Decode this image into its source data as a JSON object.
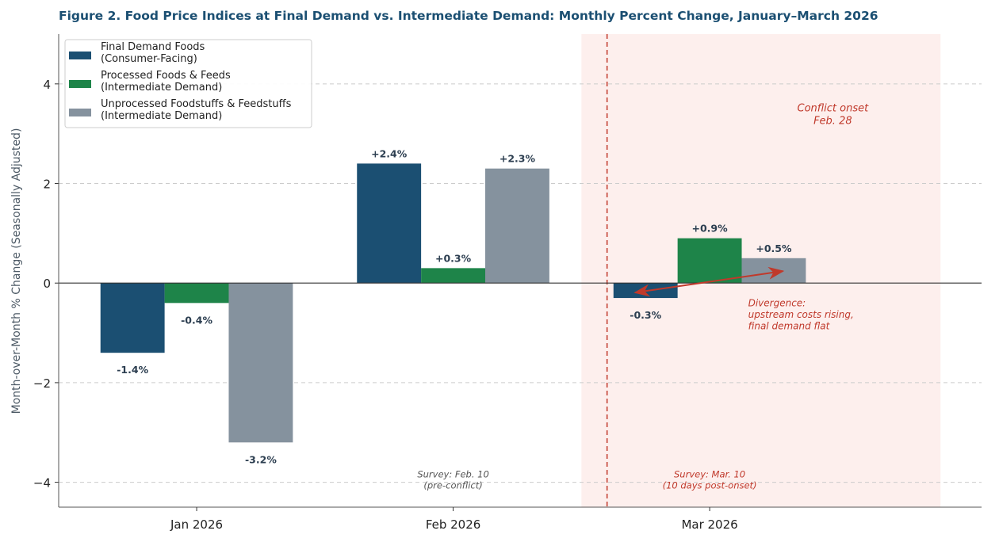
{
  "chart_data": {
    "type": "bar",
    "title": "Figure 2. Food Price Indices at Final Demand vs. Intermediate Demand: Monthly Percent Change, January–March 2026",
    "xlabel": "",
    "ylabel": "Month-over-Month % Change (Seasonally Adjusted)",
    "categories": [
      "Jan 2026",
      "Feb 2026",
      "Mar 2026"
    ],
    "ylim": [
      -4.5,
      5
    ],
    "yticks": [
      -4,
      -2,
      0,
      2,
      4
    ],
    "ytick_labels": [
      "−4",
      "−2",
      "0",
      "2",
      "4"
    ],
    "grid": "horizontal dashed",
    "legend_position": "top-left",
    "series": [
      {
        "name": "Final Demand Foods\n(Consumer-Facing)",
        "color": "#1b4f72",
        "values": [
          -1.4,
          2.4,
          -0.3
        ],
        "labels": [
          "-1.4%",
          "+2.4%",
          "-0.3%"
        ]
      },
      {
        "name": "Processed Foods & Feeds\n(Intermediate Demand)",
        "color": "#1e8449",
        "values": [
          -0.4,
          0.3,
          0.9
        ],
        "labels": [
          "-0.4%",
          "+0.3%",
          "+0.9%"
        ]
      },
      {
        "name": "Unprocessed Foodstuffs & Feedstuffs\n(Intermediate Demand)",
        "color": "#85929e",
        "values": [
          -3.2,
          2.3,
          0.5
        ],
        "labels": [
          "-3.2%",
          "+2.3%",
          "+0.5%"
        ]
      }
    ],
    "shaded_region": {
      "from_month": "Mar 2026",
      "color": "#fdecea"
    },
    "event_line": {
      "label": "Conflict onset\nFeb. 28",
      "color": "#c0392b"
    },
    "annotations": [
      {
        "text": "Divergence:\nupstream costs rising,\nfinal demand flat",
        "color": "#c0392b"
      },
      {
        "text": "Survey: Feb. 10\n(pre-conflict)",
        "color": "#555555"
      },
      {
        "text": "Survey: Mar. 10\n(10 days post-onset)",
        "color": "#c0392b"
      }
    ]
  }
}
